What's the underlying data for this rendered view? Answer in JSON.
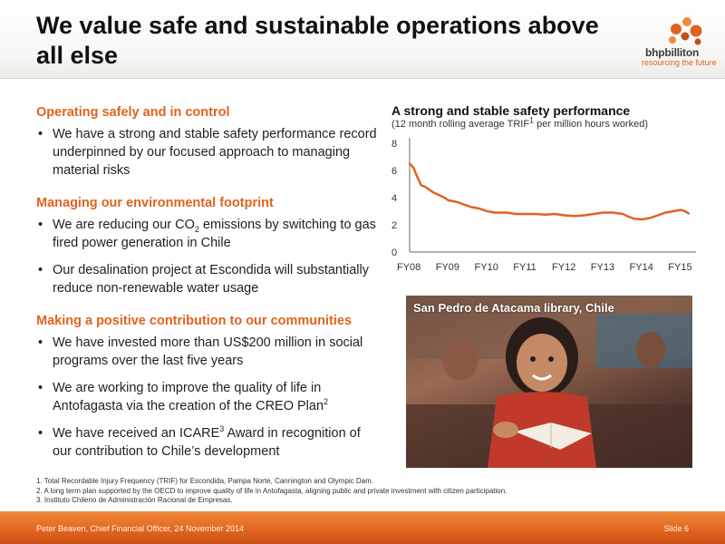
{
  "slide": {
    "title": "We value safe and sustainable operations above all else",
    "logo": {
      "name": "bhpbilliton",
      "tagline": "resourcing the future"
    }
  },
  "sections": [
    {
      "heading": "Operating safely and in control",
      "bullets": [
        {
          "text": "We have a strong and stable safety performance record underpinned by our focused approach  to managing material risks"
        }
      ]
    },
    {
      "heading": "Managing our environmental footprint",
      "bullets": [
        {
          "pre": "We are reducing our CO",
          "sub": "2",
          "post": " emissions by switching to gas fired power generation in Chile"
        },
        {
          "text": "Our desalination project at Escondida will substantially reduce non-renewable water usage"
        }
      ]
    },
    {
      "heading": "Making a positive contribution to our communities",
      "bullets": [
        {
          "text": "We have invested more than US$200 million in social programs over the last five years"
        },
        {
          "pre": "We are working to improve the quality of life in Antofagasta via the creation of the CREO Plan",
          "sup": "2",
          "post": ""
        },
        {
          "pre": "We have received an ICARE",
          "sup": "3",
          "post": " Award in recognition of our contribution to Chile’s development"
        }
      ]
    }
  ],
  "chart_data": {
    "type": "line",
    "title": "A strong and stable safety performance",
    "subtitle_pre": "(12 month rolling average TRIF",
    "subtitle_sup": "1",
    "subtitle_post": " per million hours worked)",
    "categories": [
      "FY08",
      "FY09",
      "FY10",
      "FY11",
      "FY12",
      "FY13",
      "FY14",
      "FY15"
    ],
    "yticks": [
      "0",
      "2",
      "4",
      "6",
      "8"
    ],
    "ylim": [
      0,
      8
    ],
    "xlim": [
      2008,
      2015.25
    ],
    "grid": false,
    "series_color": "#e0631f",
    "series": [
      {
        "x": [
          2008.0,
          2008.1,
          2008.2,
          2008.3,
          2008.4,
          2008.5,
          2008.6,
          2008.75,
          2008.9,
          2009.0,
          2009.2,
          2009.4,
          2009.6,
          2009.8,
          2010.0,
          2010.2,
          2010.5,
          2010.75,
          2011.0,
          2011.25,
          2011.5,
          2011.75,
          2012.0,
          2012.25,
          2012.5,
          2012.75,
          2013.0,
          2013.25,
          2013.5,
          2013.65,
          2013.8,
          2014.0,
          2014.2,
          2014.4,
          2014.6,
          2014.8,
          2015.0,
          2015.1,
          2015.2
        ],
        "y": [
          6.5,
          6.2,
          5.5,
          4.9,
          4.8,
          4.6,
          4.4,
          4.2,
          4.0,
          3.8,
          3.7,
          3.5,
          3.3,
          3.2,
          3.0,
          2.9,
          2.9,
          2.8,
          2.8,
          2.8,
          2.75,
          2.8,
          2.7,
          2.65,
          2.7,
          2.8,
          2.9,
          2.9,
          2.8,
          2.6,
          2.45,
          2.4,
          2.5,
          2.7,
          2.9,
          3.0,
          3.1,
          3.0,
          2.85
        ]
      }
    ]
  },
  "photo": {
    "caption": "San Pedro de Atacama library, Chile"
  },
  "footnotes": [
    "1.  Total Recordable Injury Frequency (TRIF) for Escondida, Pampa Norte, Cannington and Olympic Dam.",
    "2.  A long term plan supported by the OECD to improve quality of life in Antofagasta, aligning public and private investment with citizen participation.",
    "3.  Instituto Chileno de Administración Racional de Empresas."
  ],
  "footer": {
    "presenter": "Peter Beaven, Chief Financial Officer, 24 November 2014",
    "slide_number": "Slide 6"
  }
}
